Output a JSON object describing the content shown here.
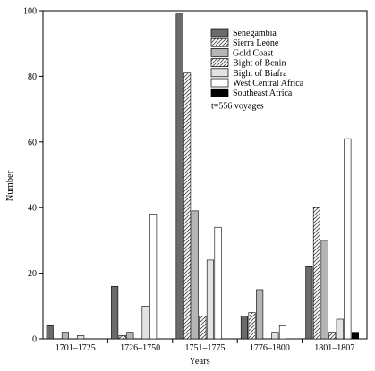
{
  "chart_data": {
    "type": "bar",
    "xlabel": "Years",
    "ylabel": "Number",
    "ylim": [
      0,
      100
    ],
    "yticks": [
      0,
      20,
      40,
      60,
      80,
      100
    ],
    "categories": [
      "1701–1725",
      "1726–1750",
      "1751–1775",
      "1776–1800",
      "1801–1807"
    ],
    "series": [
      {
        "name": "Senegambia",
        "fill": "#6b6b6b",
        "pattern": "solid",
        "values": [
          4,
          16,
          99,
          7,
          22
        ]
      },
      {
        "name": "Sierra Leone",
        "fill": "#ffffff",
        "pattern": "hatch",
        "values": [
          0,
          1,
          81,
          8,
          40
        ]
      },
      {
        "name": "Gold Coast",
        "fill": "#b5b5b5",
        "pattern": "solid",
        "values": [
          2,
          2,
          39,
          15,
          30
        ]
      },
      {
        "name": "Bight of Benin",
        "fill": "#ffffff",
        "pattern": "hatch",
        "values": [
          0,
          0,
          7,
          0,
          2
        ]
      },
      {
        "name": "Bight of Biafra",
        "fill": "#e2e2e2",
        "pattern": "solid",
        "values": [
          1,
          10,
          24,
          2,
          6
        ]
      },
      {
        "name": "West Central Africa",
        "fill": "#ffffff",
        "pattern": "solid",
        "values": [
          0,
          38,
          34,
          4,
          61
        ]
      },
      {
        "name": "Southeast Africa",
        "fill": "#000000",
        "pattern": "solid",
        "values": [
          0,
          0,
          0,
          0,
          2
        ]
      }
    ],
    "legend": {
      "placement": "top-right",
      "note": "t=556 voyages"
    }
  }
}
